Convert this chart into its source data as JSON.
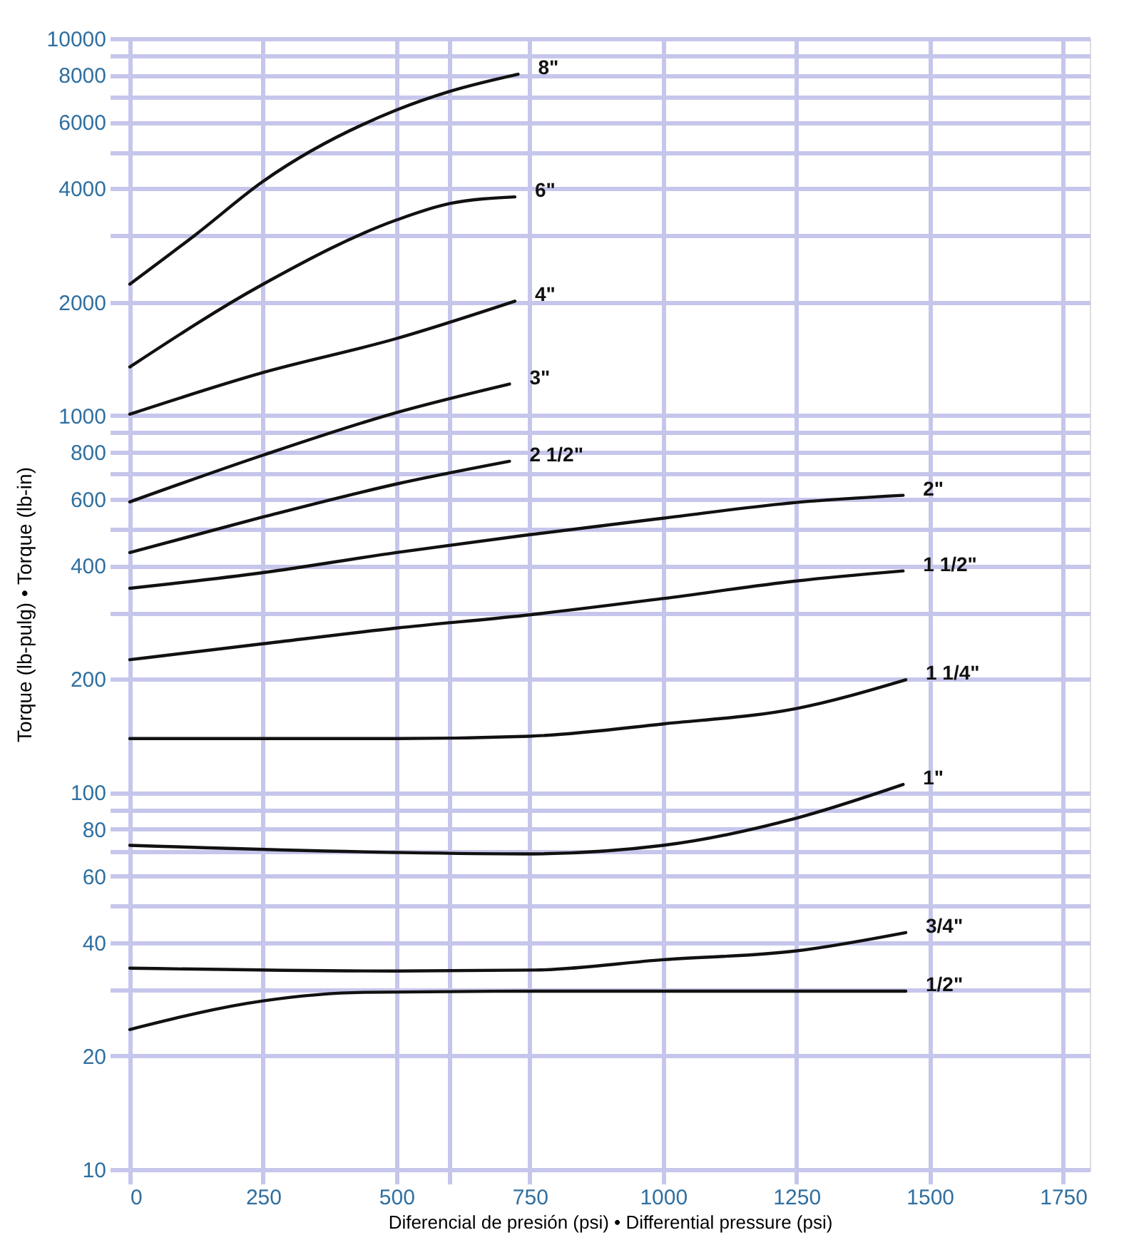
{
  "chart_data": {
    "type": "line",
    "xlabel": "Diferencial de presión (psi) • Differential pressure (psi)",
    "ylabel": "Torque (lb-pulg) • Torque (lb-in)",
    "log": "y",
    "grid": true,
    "legend": false,
    "marker": "none",
    "line_style": "solid",
    "xlim": [
      0,
      1800
    ],
    "xticks": [
      0,
      250,
      500,
      {
        "value": 600,
        "label": null
      },
      750,
      1000,
      1250,
      1500,
      1750
    ],
    "ylim": [
      10,
      10000
    ],
    "yticks": [
      10,
      20,
      {
        "value": 30,
        "label": null
      },
      40,
      {
        "value": 50,
        "label": null
      },
      60,
      {
        "value": 70,
        "label": null
      },
      80,
      {
        "value": 90,
        "label": null
      },
      100,
      200,
      {
        "value": 300,
        "label": null
      },
      400,
      {
        "value": 500,
        "label": null
      },
      600,
      {
        "value": 700,
        "label": null
      },
      800,
      {
        "value": 900,
        "label": null
      },
      1000,
      2000,
      {
        "value": 3000,
        "label": null
      },
      4000,
      {
        "value": 5000,
        "label": null
      },
      6000,
      {
        "value": 7000,
        "label": null
      },
      8000,
      {
        "value": 9000,
        "label": null
      },
      10000
    ],
    "series": [
      {
        "name": "8\"",
        "color": "#111111",
        "x": [
          0,
          125,
          250,
          500,
          600,
          728
        ],
        "values": [
          2230,
          3030,
          4180,
          6460,
          7240,
          8040
        ]
      },
      {
        "name": "6\"",
        "color": "#111111",
        "x": [
          0,
          250,
          500,
          600,
          722
        ],
        "values": [
          1345,
          2230,
          3300,
          3650,
          3800
        ]
      },
      {
        "name": "4\"",
        "color": "#111111",
        "x": [
          0,
          250,
          500,
          722
        ],
        "values": [
          1008,
          1300,
          1600,
          2010
        ]
      },
      {
        "name": "3\"",
        "color": "#111111",
        "x": [
          0,
          250,
          500,
          712
        ],
        "values": [
          590,
          785,
          1018,
          1212
        ]
      },
      {
        "name": "2 1/2\"",
        "color": "#111111",
        "x": [
          0,
          250,
          500,
          712
        ],
        "values": [
          433,
          538,
          658,
          756
        ]
      },
      {
        "name": "2\"",
        "color": "#111111",
        "x": [
          0,
          250,
          500,
          740,
          1000,
          1250,
          1450
        ],
        "values": [
          348,
          383,
          433,
          481,
          534,
          588,
          614
        ]
      },
      {
        "name": "1 1/2\"",
        "color": "#111111",
        "x": [
          0,
          250,
          500,
          740,
          1000,
          1250,
          1450
        ],
        "values": [
          225,
          248,
          273,
          295,
          327,
          364,
          387
        ]
      },
      {
        "name": "1 1/4\"",
        "color": "#111111",
        "x": [
          0,
          500,
          750,
          1000,
          1250,
          1455
        ],
        "values": [
          139,
          139,
          141,
          152,
          167,
          199
        ]
      },
      {
        "name": "1\"",
        "color": "#111111",
        "x": [
          0,
          500,
          740,
          1000,
          1250,
          1450
        ],
        "values": [
          72.4,
          69.3,
          68.7,
          72.4,
          85.5,
          105
        ]
      },
      {
        "name": "3/4\"",
        "color": "#111111",
        "x": [
          0,
          500,
          760,
          1000,
          1250,
          1455
        ],
        "values": [
          34.2,
          33.6,
          33.8,
          36.0,
          38.0,
          42.5
        ]
      },
      {
        "name": "1/2\"",
        "color": "#111111",
        "x": [
          0,
          250,
          440,
          750,
          1000,
          1455
        ],
        "values": [
          23.5,
          28.0,
          29.5,
          29.7,
          29.7,
          29.7
        ]
      }
    ]
  }
}
